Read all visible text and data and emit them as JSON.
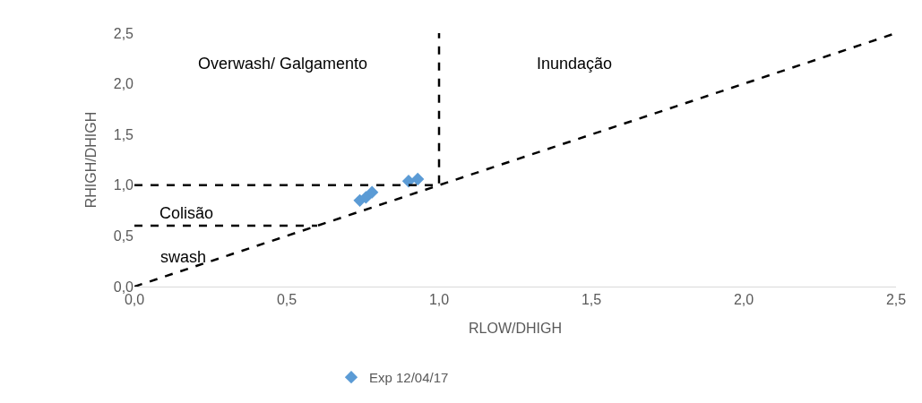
{
  "chart_data": {
    "type": "scatter",
    "xlabel": "RLOW/DHIGH",
    "ylabel": "RHIGH/DHIGH",
    "xlim": [
      0,
      2.5
    ],
    "ylim": [
      0,
      2.5
    ],
    "xticks": [
      {
        "value": 0,
        "label": "0,0"
      },
      {
        "value": 0.5,
        "label": "0,5"
      },
      {
        "value": 1,
        "label": "1,0"
      },
      {
        "value": 1.5,
        "label": "1,5"
      },
      {
        "value": 2,
        "label": "2,0"
      },
      {
        "value": 2.5,
        "label": "2,5"
      }
    ],
    "yticks": [
      {
        "value": 0,
        "label": "0,0"
      },
      {
        "value": 0.5,
        "label": "0,5"
      },
      {
        "value": 1,
        "label": "1,0"
      },
      {
        "value": 1.5,
        "label": "1,5"
      },
      {
        "value": 2,
        "label": "2,0"
      },
      {
        "value": 2.5,
        "label": "2,5"
      }
    ],
    "legend": "bottom",
    "marker": "diamond",
    "series": [
      {
        "name": "Exp 12/04/17",
        "color": "#5b9bd5",
        "x": [
          0.74,
          0.76,
          0.78,
          0.9,
          0.93
        ],
        "values": [
          0.85,
          0.88,
          0.93,
          1.04,
          1.06
        ]
      },
      {
        "type": "line",
        "color": "#000000",
        "line_style": "dashed",
        "marker": "none",
        "x": [
          0,
          2.5
        ],
        "values": [
          0,
          2.5
        ]
      },
      {
        "type": "line",
        "color": "#000000",
        "line_style": "dashed",
        "marker": "none",
        "x": [
          0,
          1,
          1
        ],
        "values": [
          1,
          1,
          2.5
        ]
      },
      {
        "type": "line",
        "color": "#000000",
        "line_style": "dashed",
        "marker": "none",
        "x": [
          0,
          0.6
        ],
        "values": [
          0.6,
          0.6
        ]
      }
    ],
    "annotations": [
      "Overwash/ Galgamento",
      "Inundação",
      "Colisão",
      "swash"
    ]
  }
}
